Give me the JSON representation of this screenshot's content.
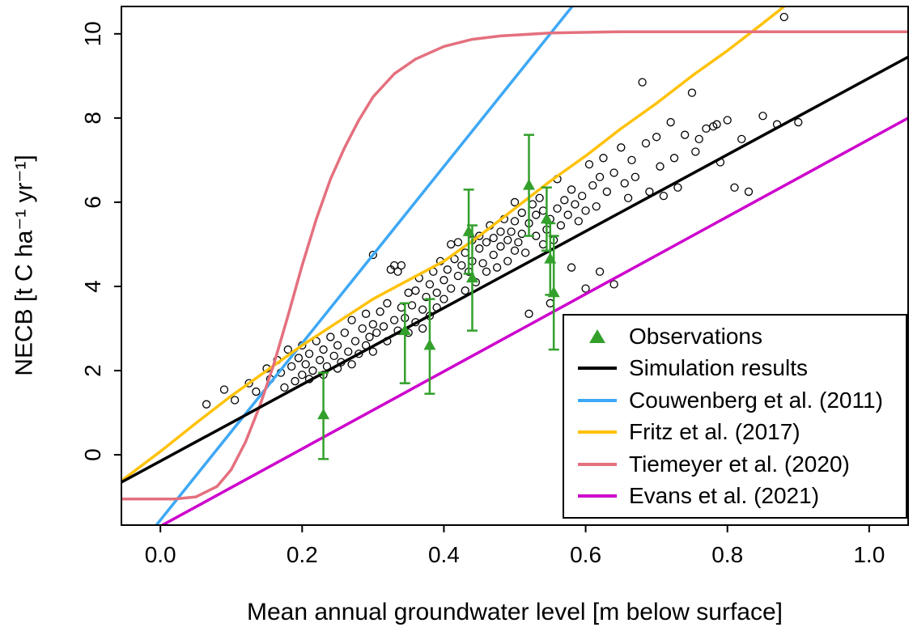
{
  "figure": {
    "background": "#FFFFFF"
  },
  "chart_data": {
    "type": "scatter",
    "title": "",
    "xlabel": "Mean annual groundwater level [m below surface]",
    "ylabel": "NECB [t C ha⁻¹ yr⁻¹]",
    "xlim": [
      -0.055,
      1.055
    ],
    "ylim": [
      -1.67,
      10.65
    ],
    "grid": false,
    "legend_position": "bottom-right",
    "x_ticks": [
      0.0,
      0.2,
      0.4,
      0.6,
      0.8,
      1.0
    ],
    "x_tick_labels": [
      "0.0",
      "0.2",
      "0.4",
      "0.6",
      "0.8",
      "1.0"
    ],
    "y_ticks": [
      0,
      2,
      4,
      6,
      8,
      10
    ],
    "y_tick_labels": [
      "0",
      "2",
      "4",
      "6",
      "8",
      "10"
    ],
    "scatter": {
      "name": "simulated-site-years",
      "marker": "open-circle",
      "color": "#000000",
      "points": [
        [
          0.065,
          1.2
        ],
        [
          0.09,
          1.55
        ],
        [
          0.105,
          1.3
        ],
        [
          0.125,
          1.7
        ],
        [
          0.135,
          1.5
        ],
        [
          0.15,
          2.05
        ],
        [
          0.155,
          1.8
        ],
        [
          0.165,
          2.25
        ],
        [
          0.17,
          1.95
        ],
        [
          0.175,
          1.6
        ],
        [
          0.18,
          2.5
        ],
        [
          0.185,
          2.1
        ],
        [
          0.19,
          1.75
        ],
        [
          0.195,
          2.3
        ],
        [
          0.2,
          1.9
        ],
        [
          0.2,
          2.6
        ],
        [
          0.205,
          2.15
        ],
        [
          0.21,
          1.8
        ],
        [
          0.21,
          2.4
        ],
        [
          0.215,
          2.0
        ],
        [
          0.22,
          2.7
        ],
        [
          0.225,
          2.25
        ],
        [
          0.23,
          1.9
        ],
        [
          0.23,
          2.5
        ],
        [
          0.235,
          2.1
        ],
        [
          0.24,
          2.8
        ],
        [
          0.245,
          2.35
        ],
        [
          0.25,
          2.05
        ],
        [
          0.25,
          2.6
        ],
        [
          0.255,
          2.2
        ],
        [
          0.26,
          2.9
        ],
        [
          0.265,
          2.45
        ],
        [
          0.27,
          2.15
        ],
        [
          0.27,
          3.2
        ],
        [
          0.275,
          2.7
        ],
        [
          0.28,
          2.4
        ],
        [
          0.285,
          3.0
        ],
        [
          0.29,
          2.6
        ],
        [
          0.29,
          3.35
        ],
        [
          0.295,
          2.8
        ],
        [
          0.3,
          2.45
        ],
        [
          0.3,
          3.1
        ],
        [
          0.3,
          4.75
        ],
        [
          0.305,
          2.9
        ],
        [
          0.31,
          3.4
        ],
        [
          0.315,
          3.05
        ],
        [
          0.32,
          2.7
        ],
        [
          0.32,
          3.6
        ],
        [
          0.325,
          4.4
        ],
        [
          0.33,
          4.5
        ],
        [
          0.33,
          3.2
        ],
        [
          0.335,
          4.35
        ],
        [
          0.335,
          2.95
        ],
        [
          0.34,
          4.5
        ],
        [
          0.34,
          3.5
        ],
        [
          0.345,
          3.25
        ],
        [
          0.35,
          3.85
        ],
        [
          0.35,
          2.9
        ],
        [
          0.355,
          3.55
        ],
        [
          0.36,
          3.15
        ],
        [
          0.36,
          3.9
        ],
        [
          0.365,
          4.2
        ],
        [
          0.37,
          3.45
        ],
        [
          0.37,
          3.0
        ],
        [
          0.375,
          3.75
        ],
        [
          0.38,
          4.05
        ],
        [
          0.38,
          3.3
        ],
        [
          0.385,
          4.35
        ],
        [
          0.39,
          3.85
        ],
        [
          0.39,
          3.5
        ],
        [
          0.395,
          4.6
        ],
        [
          0.4,
          4.15
        ],
        [
          0.4,
          3.7
        ],
        [
          0.405,
          4.4
        ],
        [
          0.41,
          3.95
        ],
        [
          0.41,
          5.0
        ],
        [
          0.415,
          4.65
        ],
        [
          0.42,
          4.25
        ],
        [
          0.42,
          5.05
        ],
        [
          0.425,
          4.5
        ],
        [
          0.43,
          3.9
        ],
        [
          0.43,
          4.8
        ],
        [
          0.435,
          4.35
        ],
        [
          0.44,
          5.1
        ],
        [
          0.44,
          4.6
        ],
        [
          0.445,
          4.1
        ],
        [
          0.45,
          4.9
        ],
        [
          0.45,
          5.2
        ],
        [
          0.455,
          4.55
        ],
        [
          0.46,
          5.05
        ],
        [
          0.46,
          4.35
        ],
        [
          0.465,
          5.45
        ],
        [
          0.47,
          4.75
        ],
        [
          0.47,
          5.15
        ],
        [
          0.475,
          4.45
        ],
        [
          0.48,
          5.3
        ],
        [
          0.48,
          4.95
        ],
        [
          0.485,
          5.6
        ],
        [
          0.49,
          5.1
        ],
        [
          0.49,
          4.6
        ],
        [
          0.495,
          5.3
        ],
        [
          0.5,
          4.85
        ],
        [
          0.5,
          5.55
        ],
        [
          0.5,
          6.0
        ],
        [
          0.505,
          5.05
        ],
        [
          0.51,
          5.75
        ],
        [
          0.51,
          5.25
        ],
        [
          0.515,
          4.8
        ],
        [
          0.52,
          5.5
        ],
        [
          0.52,
          3.35
        ],
        [
          0.525,
          5.95
        ],
        [
          0.53,
          5.2
        ],
        [
          0.53,
          5.7
        ],
        [
          0.535,
          6.1
        ],
        [
          0.54,
          5.0
        ],
        [
          0.54,
          5.8
        ],
        [
          0.545,
          5.35
        ],
        [
          0.55,
          5.6
        ],
        [
          0.55,
          3.6
        ],
        [
          0.555,
          5.1
        ],
        [
          0.56,
          5.85
        ],
        [
          0.56,
          6.55
        ],
        [
          0.565,
          5.45
        ],
        [
          0.57,
          6.05
        ],
        [
          0.575,
          5.7
        ],
        [
          0.58,
          4.45
        ],
        [
          0.58,
          6.3
        ],
        [
          0.585,
          5.95
        ],
        [
          0.59,
          5.55
        ],
        [
          0.595,
          6.15
        ],
        [
          0.6,
          5.8
        ],
        [
          0.6,
          3.95
        ],
        [
          0.605,
          6.9
        ],
        [
          0.61,
          6.4
        ],
        [
          0.615,
          5.9
        ],
        [
          0.62,
          6.6
        ],
        [
          0.62,
          4.35
        ],
        [
          0.625,
          7.05
        ],
        [
          0.63,
          6.25
        ],
        [
          0.64,
          6.7
        ],
        [
          0.64,
          4.05
        ],
        [
          0.65,
          7.3
        ],
        [
          0.655,
          6.45
        ],
        [
          0.66,
          6.1
        ],
        [
          0.665,
          7.0
        ],
        [
          0.67,
          6.6
        ],
        [
          0.68,
          8.85
        ],
        [
          0.685,
          7.4
        ],
        [
          0.69,
          6.25
        ],
        [
          0.7,
          7.55
        ],
        [
          0.705,
          6.85
        ],
        [
          0.71,
          6.15
        ],
        [
          0.72,
          7.9
        ],
        [
          0.725,
          7.05
        ],
        [
          0.73,
          6.35
        ],
        [
          0.74,
          7.6
        ],
        [
          0.75,
          8.6
        ],
        [
          0.755,
          7.2
        ],
        [
          0.76,
          7.5
        ],
        [
          0.77,
          7.75
        ],
        [
          0.78,
          7.8
        ],
        [
          0.785,
          7.85
        ],
        [
          0.79,
          6.95
        ],
        [
          0.8,
          7.95
        ],
        [
          0.81,
          6.35
        ],
        [
          0.82,
          7.5
        ],
        [
          0.83,
          6.25
        ],
        [
          0.85,
          8.05
        ],
        [
          0.87,
          7.85
        ],
        [
          0.88,
          10.4
        ],
        [
          0.9,
          7.9
        ]
      ]
    },
    "observations": {
      "name": "Observations",
      "marker": "filled-triangle",
      "color": "#33A02C",
      "points": [
        {
          "x": 0.23,
          "y": 0.95,
          "lo": -0.1,
          "hi": 1.95
        },
        {
          "x": 0.345,
          "y": 2.95,
          "lo": 1.7,
          "hi": 3.6
        },
        {
          "x": 0.38,
          "y": 2.6,
          "lo": 1.45,
          "hi": 3.7
        },
        {
          "x": 0.435,
          "y": 5.3,
          "lo": 4.3,
          "hi": 6.3
        },
        {
          "x": 0.44,
          "y": 4.2,
          "lo": 2.95,
          "hi": 5.45
        },
        {
          "x": 0.52,
          "y": 6.4,
          "lo": 5.2,
          "hi": 7.6
        },
        {
          "x": 0.545,
          "y": 5.6,
          "lo": 4.85,
          "hi": 6.35
        },
        {
          "x": 0.55,
          "y": 4.65,
          "lo": 3.8,
          "hi": 5.5
        },
        {
          "x": 0.555,
          "y": 3.85,
          "lo": 2.5,
          "hi": 5.2
        }
      ]
    },
    "lines": [
      {
        "id": "couwenberg-2011",
        "name": "Couwenberg et al. (2011)",
        "color": "#3DA8F5",
        "points": [
          [
            -0.02,
            -1.97
          ],
          [
            0.6,
            11.05
          ]
        ]
      },
      {
        "id": "fritz-2017",
        "name": "Fritz et al. (2017)",
        "color": "#FFC20A",
        "points": [
          [
            -0.055,
            -0.62
          ],
          [
            0.0,
            0.08
          ],
          [
            0.05,
            0.75
          ],
          [
            0.1,
            1.4
          ],
          [
            0.15,
            2.0
          ],
          [
            0.2,
            2.6
          ],
          [
            0.25,
            3.15
          ],
          [
            0.3,
            3.7
          ],
          [
            0.35,
            4.15
          ],
          [
            0.4,
            4.6
          ],
          [
            0.45,
            5.2
          ],
          [
            0.5,
            5.85
          ],
          [
            0.55,
            6.5
          ],
          [
            0.6,
            7.1
          ],
          [
            0.65,
            7.75
          ],
          [
            0.7,
            8.35
          ],
          [
            0.75,
            9.0
          ],
          [
            0.8,
            9.6
          ],
          [
            0.85,
            10.25
          ],
          [
            0.88,
            10.65
          ]
        ]
      },
      {
        "id": "tiemeyer-2020",
        "name": "Tiemeyer et al. (2020)",
        "color": "#E4707E",
        "points": [
          [
            -0.055,
            -1.05
          ],
          [
            0.02,
            -1.05
          ],
          [
            0.05,
            -1.0
          ],
          [
            0.08,
            -0.75
          ],
          [
            0.1,
            -0.35
          ],
          [
            0.12,
            0.3
          ],
          [
            0.14,
            1.15
          ],
          [
            0.16,
            2.15
          ],
          [
            0.18,
            3.3
          ],
          [
            0.2,
            4.5
          ],
          [
            0.22,
            5.6
          ],
          [
            0.24,
            6.55
          ],
          [
            0.26,
            7.3
          ],
          [
            0.28,
            7.95
          ],
          [
            0.3,
            8.5
          ],
          [
            0.33,
            9.05
          ],
          [
            0.36,
            9.4
          ],
          [
            0.4,
            9.7
          ],
          [
            0.44,
            9.87
          ],
          [
            0.48,
            9.95
          ],
          [
            0.55,
            10.02
          ],
          [
            0.65,
            10.05
          ],
          [
            1.055,
            10.05
          ]
        ]
      },
      {
        "id": "evans-2021",
        "name": "Evans et al. (2021)",
        "color": "#CD00CD",
        "points": [
          [
            -0.02,
            -1.88
          ],
          [
            1.055,
            8.0
          ]
        ]
      },
      {
        "id": "simulation-results",
        "name": "Simulation results",
        "color": "#000000",
        "points": [
          [
            -0.055,
            -0.65
          ],
          [
            1.055,
            9.45
          ]
        ]
      }
    ],
    "legend": {
      "items": [
        {
          "label": "Observations",
          "swatch": "triangle",
          "color": "#33A02C"
        },
        {
          "label": "Simulation results",
          "swatch": "line",
          "color": "#000000"
        },
        {
          "label": "Couwenberg et al. (2011)",
          "swatch": "line",
          "color": "#3DA8F5"
        },
        {
          "label": "Fritz et al. (2017)",
          "swatch": "line",
          "color": "#FFC20A"
        },
        {
          "label": "Tiemeyer et al. (2020)",
          "swatch": "line",
          "color": "#E4707E"
        },
        {
          "label": "Evans et al. (2021)",
          "swatch": "line",
          "color": "#CD00CD"
        }
      ]
    }
  }
}
